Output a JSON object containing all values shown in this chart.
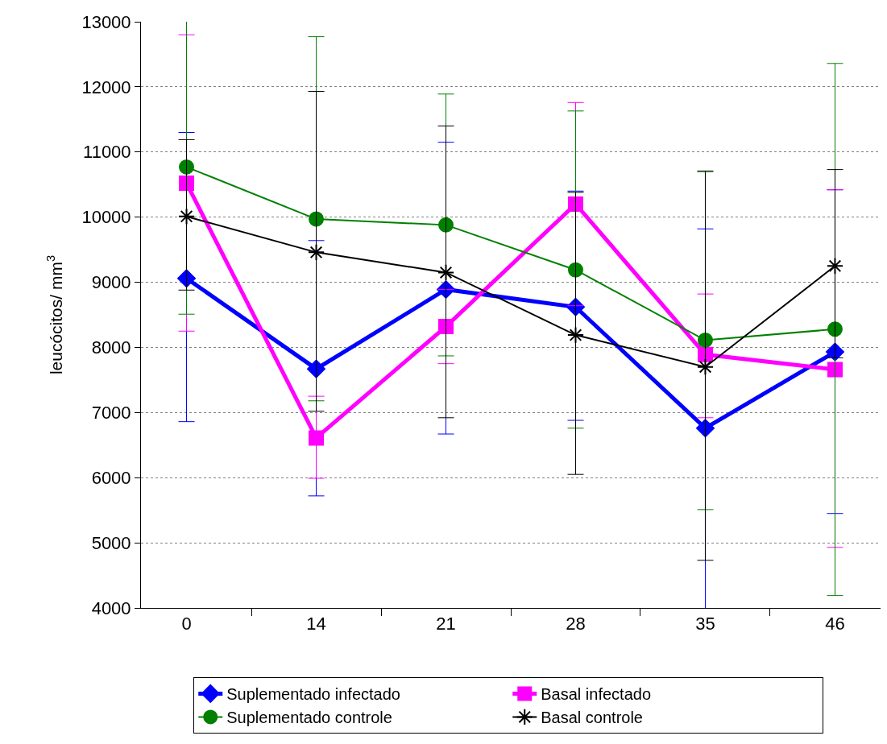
{
  "chart_data": {
    "type": "line",
    "ylabel": "leucócitos/ mm$^{3}$",
    "categories": [
      "0",
      "14",
      "21",
      "28",
      "35",
      "46"
    ],
    "ylim": [
      4000,
      13000
    ],
    "yticks": [
      4000,
      5000,
      6000,
      7000,
      8000,
      9000,
      10000,
      11000,
      12000,
      13000
    ],
    "grid": "y",
    "legend": "bottom",
    "series": [
      {
        "name": "Suplementado infectado",
        "color": "#0000ff",
        "marker": "diamond",
        "values": [
          9060,
          7670,
          8890,
          8620,
          6760,
          7930
        ],
        "errors": [
          [
            6860,
            11300
          ],
          [
            5720,
            9640
          ],
          [
            6670,
            11150
          ],
          [
            6880,
            10400
          ],
          3060,
          [
            5450,
            10420
          ]
        ]
      },
      {
        "name": "Basal infectado",
        "color": "#ff00ff",
        "marker": "square",
        "values": [
          10520,
          6610,
          8320,
          10200,
          7890,
          7660
        ],
        "errors": [
          [
            8250,
            12800
          ],
          [
            5990,
            7250
          ],
          [
            7750,
            8890
          ],
          [
            8640,
            11760
          ],
          [
            6920,
            8820
          ],
          [
            4930,
            10420
          ]
        ]
      },
      {
        "name": "Suplementado controle",
        "color": "#008000",
        "marker": "circle",
        "values": [
          10770,
          9970,
          9880,
          9190,
          8110,
          8280
        ],
        "errors": [
          2260,
          [
            7180,
            12770
          ],
          [
            7870,
            11890
          ],
          [
            6760,
            11630
          ],
          [
            5510,
            10710
          ],
          [
            4190,
            12360
          ]
        ]
      },
      {
        "name": "Basal controle",
        "color": "#000000",
        "marker": "cross",
        "values": [
          10010,
          9460,
          9150,
          8190,
          7700,
          9250
        ],
        "errors": [
          [
            8880,
            11190
          ],
          [
            7020,
            11930
          ],
          [
            6920,
            11400
          ],
          [
            6050,
            10380
          ],
          [
            4730,
            10700
          ],
          [
            7840,
            10730
          ]
        ]
      }
    ]
  }
}
